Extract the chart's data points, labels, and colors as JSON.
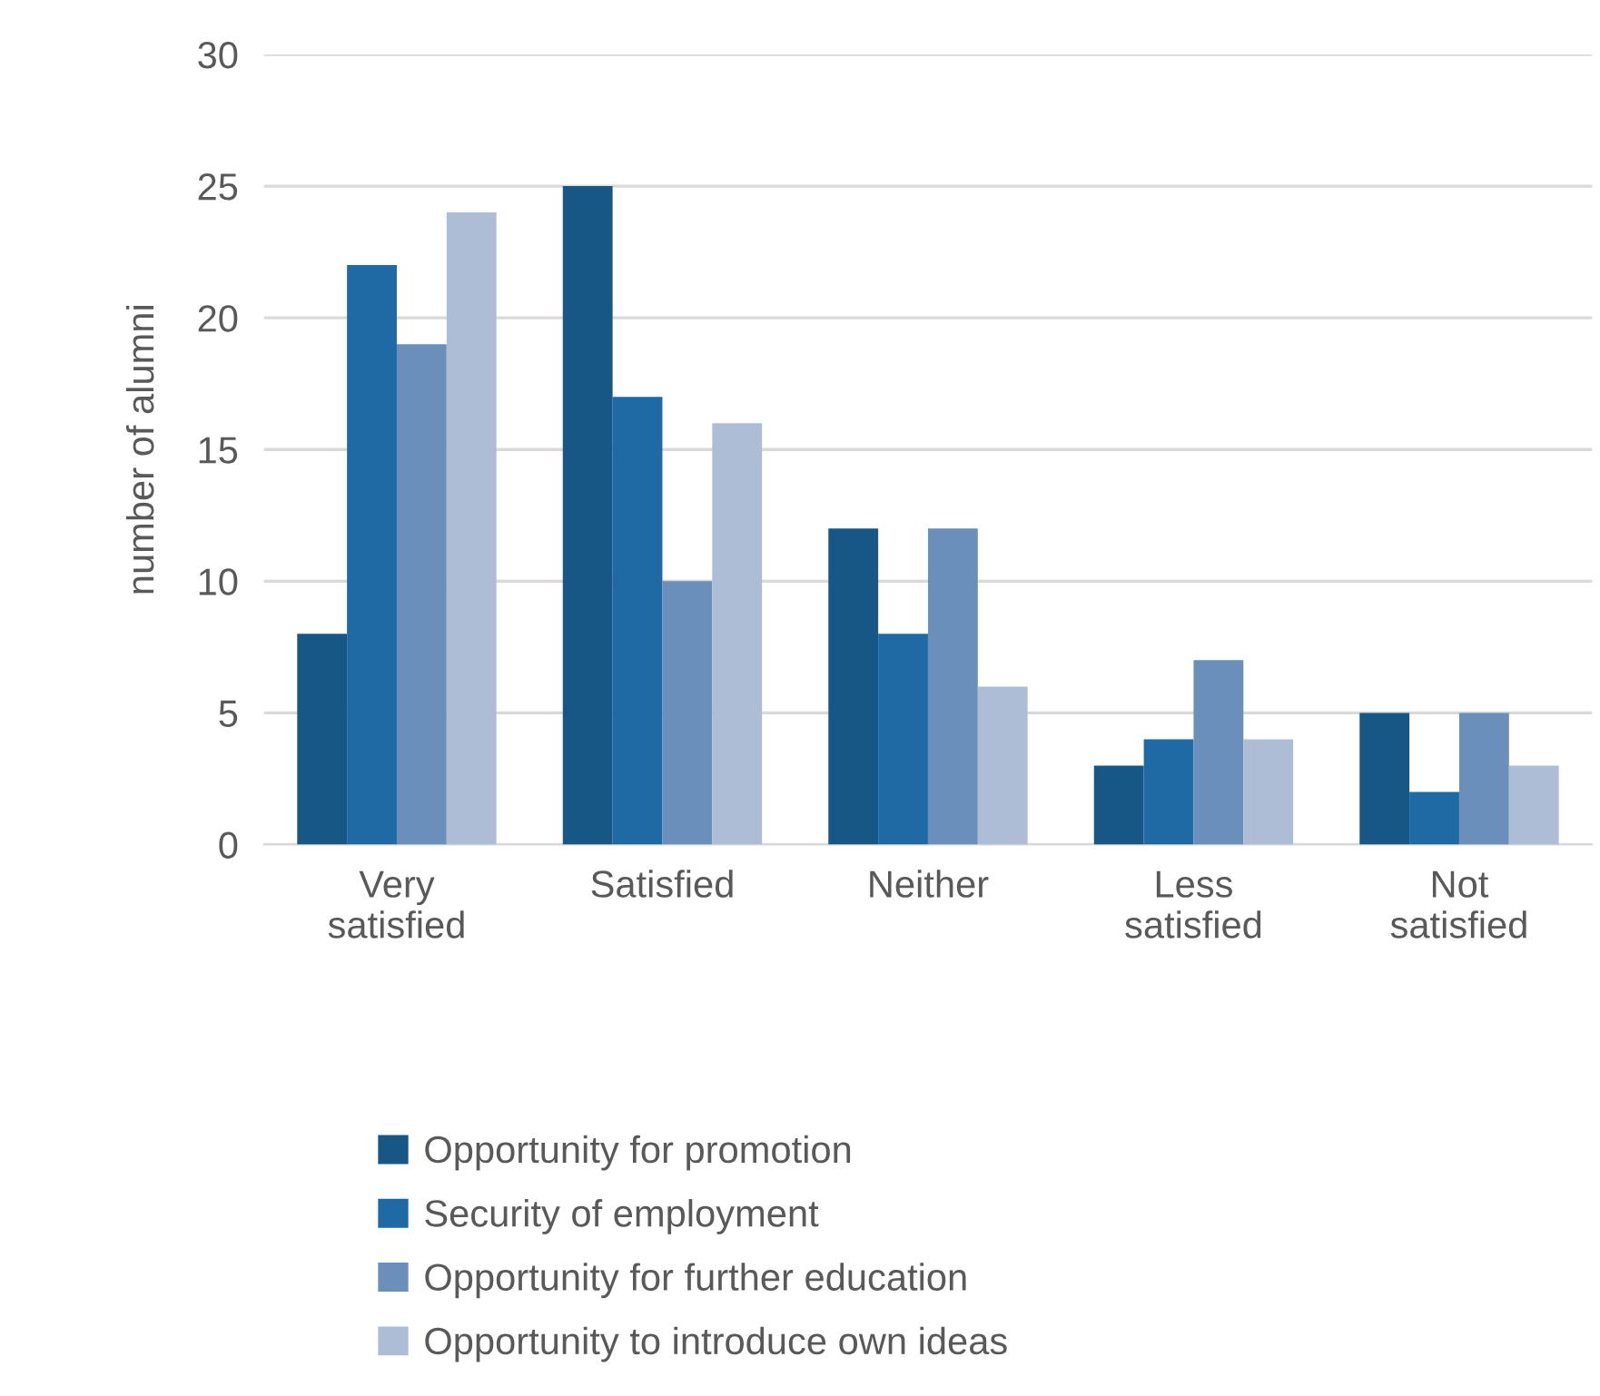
{
  "chart_data": {
    "type": "bar",
    "ylabel": "number of alumni",
    "categories": [
      "Very\nsatisfied",
      "Satisfied",
      "Neither",
      "Less\nsatisfied",
      "Not\nsatisfied"
    ],
    "series": [
      {
        "name": "Opportunity for promotion",
        "color": "#175785",
        "values": [
          8,
          25,
          12,
          3,
          5
        ]
      },
      {
        "name": "Security of employment",
        "color": "#1f6aa5",
        "values": [
          22,
          17,
          8,
          4,
          2
        ]
      },
      {
        "name": "Opportunity for further education",
        "color": "#6a8fba",
        "values": [
          19,
          10,
          12,
          7,
          5
        ]
      },
      {
        "name": "Opportunity to introduce own ideas",
        "color": "#adbdd6",
        "values": [
          24,
          16,
          6,
          4,
          3
        ]
      }
    ],
    "ylim": [
      0,
      30
    ],
    "yticks": [
      0,
      5,
      10,
      15,
      20,
      25,
      30
    ],
    "grid": "y",
    "legend": "bottom"
  }
}
